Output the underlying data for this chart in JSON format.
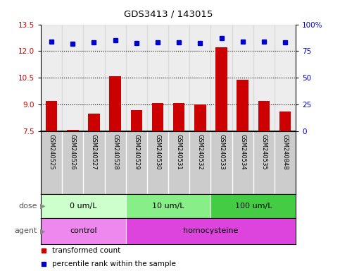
{
  "title": "GDS3413 / 143015",
  "samples": [
    "GSM240525",
    "GSM240526",
    "GSM240527",
    "GSM240528",
    "GSM240529",
    "GSM240530",
    "GSM240531",
    "GSM240532",
    "GSM240533",
    "GSM240534",
    "GSM240535",
    "GSM240848"
  ],
  "bar_values": [
    9.2,
    7.6,
    8.5,
    10.6,
    8.7,
    9.1,
    9.1,
    9.0,
    12.2,
    10.4,
    9.2,
    8.6
  ],
  "dot_values": [
    12.55,
    12.4,
    12.5,
    12.6,
    12.45,
    12.5,
    12.5,
    12.45,
    12.75,
    12.55,
    12.55,
    12.5
  ],
  "bar_color": "#cc0000",
  "dot_color": "#0000cc",
  "ylim_left": [
    7.5,
    13.5
  ],
  "yticks_left": [
    7.5,
    9.0,
    10.5,
    12.0,
    13.5
  ],
  "ylim_right": [
    0,
    100
  ],
  "yticks_right": [
    0,
    25,
    50,
    75,
    100
  ],
  "ytick_labels_right": [
    "0",
    "25",
    "50",
    "75",
    "100%"
  ],
  "hlines": [
    9.0,
    10.5,
    12.0
  ],
  "dose_groups": [
    {
      "label": "0 um/L",
      "start": 0,
      "end": 4,
      "color": "#ccffcc"
    },
    {
      "label": "10 um/L",
      "start": 4,
      "end": 8,
      "color": "#88ee88"
    },
    {
      "label": "100 um/L",
      "start": 8,
      "end": 12,
      "color": "#44cc44"
    }
  ],
  "agent_groups": [
    {
      "label": "control",
      "start": 0,
      "end": 4,
      "color": "#ee88ee"
    },
    {
      "label": "homocysteine",
      "start": 4,
      "end": 12,
      "color": "#dd44dd"
    }
  ],
  "legend_items": [
    {
      "color": "#cc0000",
      "label": "transformed count"
    },
    {
      "color": "#0000cc",
      "label": "percentile rank within the sample"
    }
  ],
  "bar_width": 0.55,
  "background_color": "#ffffff",
  "left_tick_color": "#cc0000",
  "right_tick_color": "#0000cc",
  "sample_bg_color": "#cccccc",
  "dose_label": "dose",
  "agent_label": "agent"
}
